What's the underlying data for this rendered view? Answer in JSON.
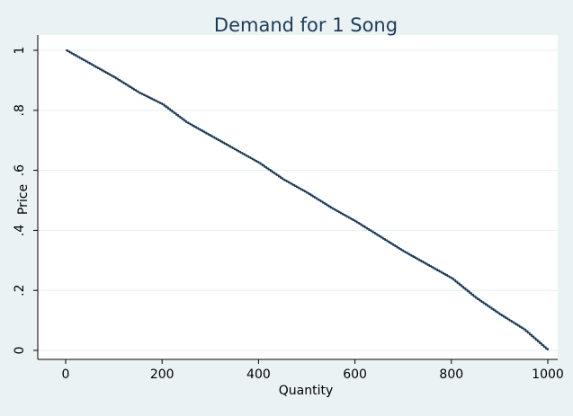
{
  "chart_data": {
    "type": "line",
    "title": "Demand for 1 Song",
    "xlabel": "Quantity",
    "ylabel": "Price",
    "xlim": [
      0,
      1000
    ],
    "ylim": [
      0,
      1
    ],
    "x_ticks": [
      0,
      200,
      400,
      600,
      800,
      1000
    ],
    "x_tick_labels": [
      "0",
      "200",
      "400",
      "600",
      "800",
      "1000"
    ],
    "y_ticks": [
      0,
      0.2,
      0.4,
      0.6,
      0.8,
      1
    ],
    "y_tick_labels": [
      "0",
      ".2",
      ".4",
      ".6",
      ".8",
      "1"
    ],
    "grid": true,
    "series": [
      {
        "x": [
          0,
          50,
          100,
          150,
          200,
          250,
          300,
          350,
          400,
          450,
          500,
          550,
          600,
          650,
          700,
          750,
          800,
          850,
          900,
          950,
          1000
        ],
        "y": [
          1.0,
          0.955,
          0.91,
          0.86,
          0.82,
          0.76,
          0.715,
          0.67,
          0.625,
          0.57,
          0.525,
          0.475,
          0.43,
          0.38,
          0.33,
          0.285,
          0.24,
          0.175,
          0.12,
          0.07,
          0.0
        ]
      }
    ],
    "colors": {
      "background": "#eaf2f3",
      "plot_background": "#ffffff",
      "line": "#1c3b5a",
      "grid": "#e6eff1",
      "title": "#1c3b5a"
    }
  }
}
